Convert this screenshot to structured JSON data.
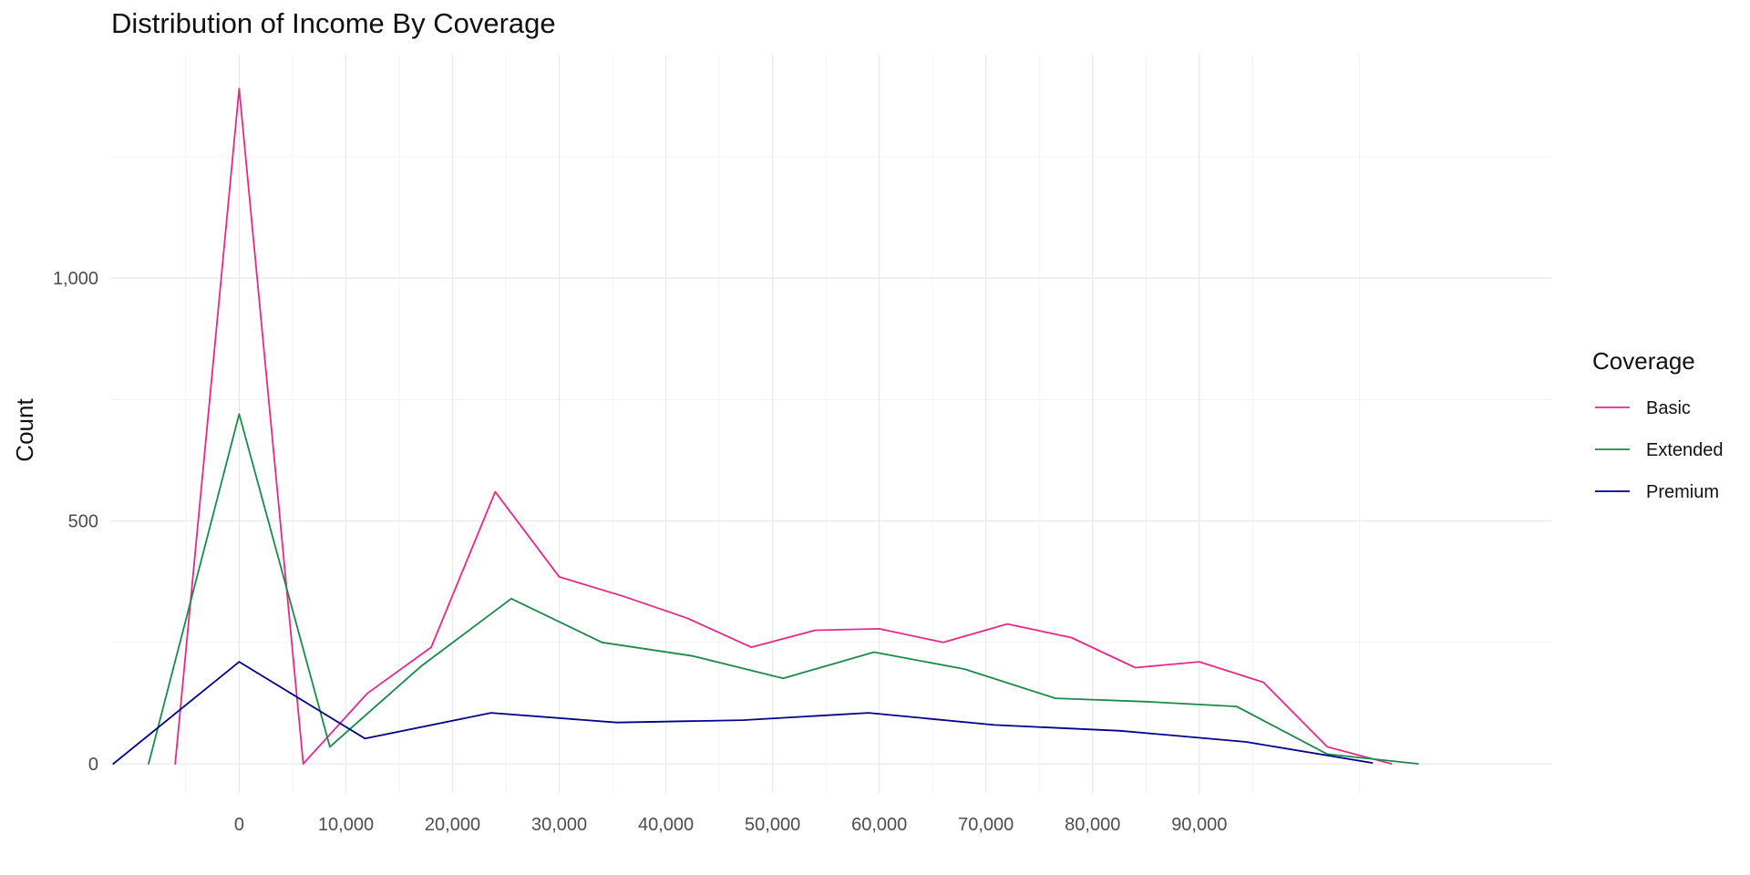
{
  "chart_data": {
    "type": "line",
    "title": "Distribution of Income By Coverage",
    "xlabel": "",
    "ylabel": "Count",
    "xlim": [
      -12000,
      123000
    ],
    "ylim": [
      -60,
      1460
    ],
    "x_ticks": [
      0,
      10000,
      20000,
      30000,
      40000,
      50000,
      60000,
      70000,
      80000,
      90000
    ],
    "x_tick_labels": [
      "0",
      "10,000",
      "20,000",
      "30,000",
      "40,000",
      "50,000",
      "60,000",
      "70,000",
      "80,000",
      "90,000"
    ],
    "y_ticks": [
      0,
      500,
      1000
    ],
    "y_tick_labels": [
      "0",
      "500",
      "1,000"
    ],
    "grid": true,
    "legend": {
      "title": "Coverage",
      "position": "right"
    },
    "series": [
      {
        "name": "Basic",
        "color": "#e7298a",
        "points": [
          [
            -6000,
            0
          ],
          [
            0,
            1390
          ],
          [
            6000,
            0
          ],
          [
            12000,
            145
          ],
          [
            18000,
            240
          ],
          [
            24000,
            560
          ],
          [
            30000,
            385
          ],
          [
            36000,
            345
          ],
          [
            42000,
            300
          ],
          [
            48000,
            240
          ],
          [
            54000,
            275
          ],
          [
            60000,
            278
          ],
          [
            66000,
            250
          ],
          [
            72000,
            288
          ],
          [
            78000,
            260
          ],
          [
            84000,
            198
          ],
          [
            90000,
            210
          ],
          [
            96000,
            168
          ],
          [
            102000,
            35
          ],
          [
            108000,
            0
          ]
        ]
      },
      {
        "name": "Extended",
        "color": "#1b8a4b",
        "points": [
          [
            -8500,
            0
          ],
          [
            0,
            720
          ],
          [
            8500,
            35
          ],
          [
            17000,
            200
          ],
          [
            25500,
            340
          ],
          [
            34000,
            250
          ],
          [
            42500,
            222
          ],
          [
            51000,
            176
          ],
          [
            59500,
            230
          ],
          [
            68000,
            195
          ],
          [
            76500,
            135
          ],
          [
            85000,
            128
          ],
          [
            93500,
            118
          ],
          [
            102000,
            20
          ],
          [
            110500,
            0
          ]
        ]
      },
      {
        "name": "Premium",
        "color": "#00008b",
        "points": [
          [
            -11800,
            0
          ],
          [
            0,
            210
          ],
          [
            11800,
            52
          ],
          [
            23600,
            105
          ],
          [
            35400,
            85
          ],
          [
            47200,
            90
          ],
          [
            59000,
            105
          ],
          [
            70800,
            80
          ],
          [
            82600,
            68
          ],
          [
            94400,
            45
          ],
          [
            106200,
            2
          ]
        ]
      }
    ]
  }
}
